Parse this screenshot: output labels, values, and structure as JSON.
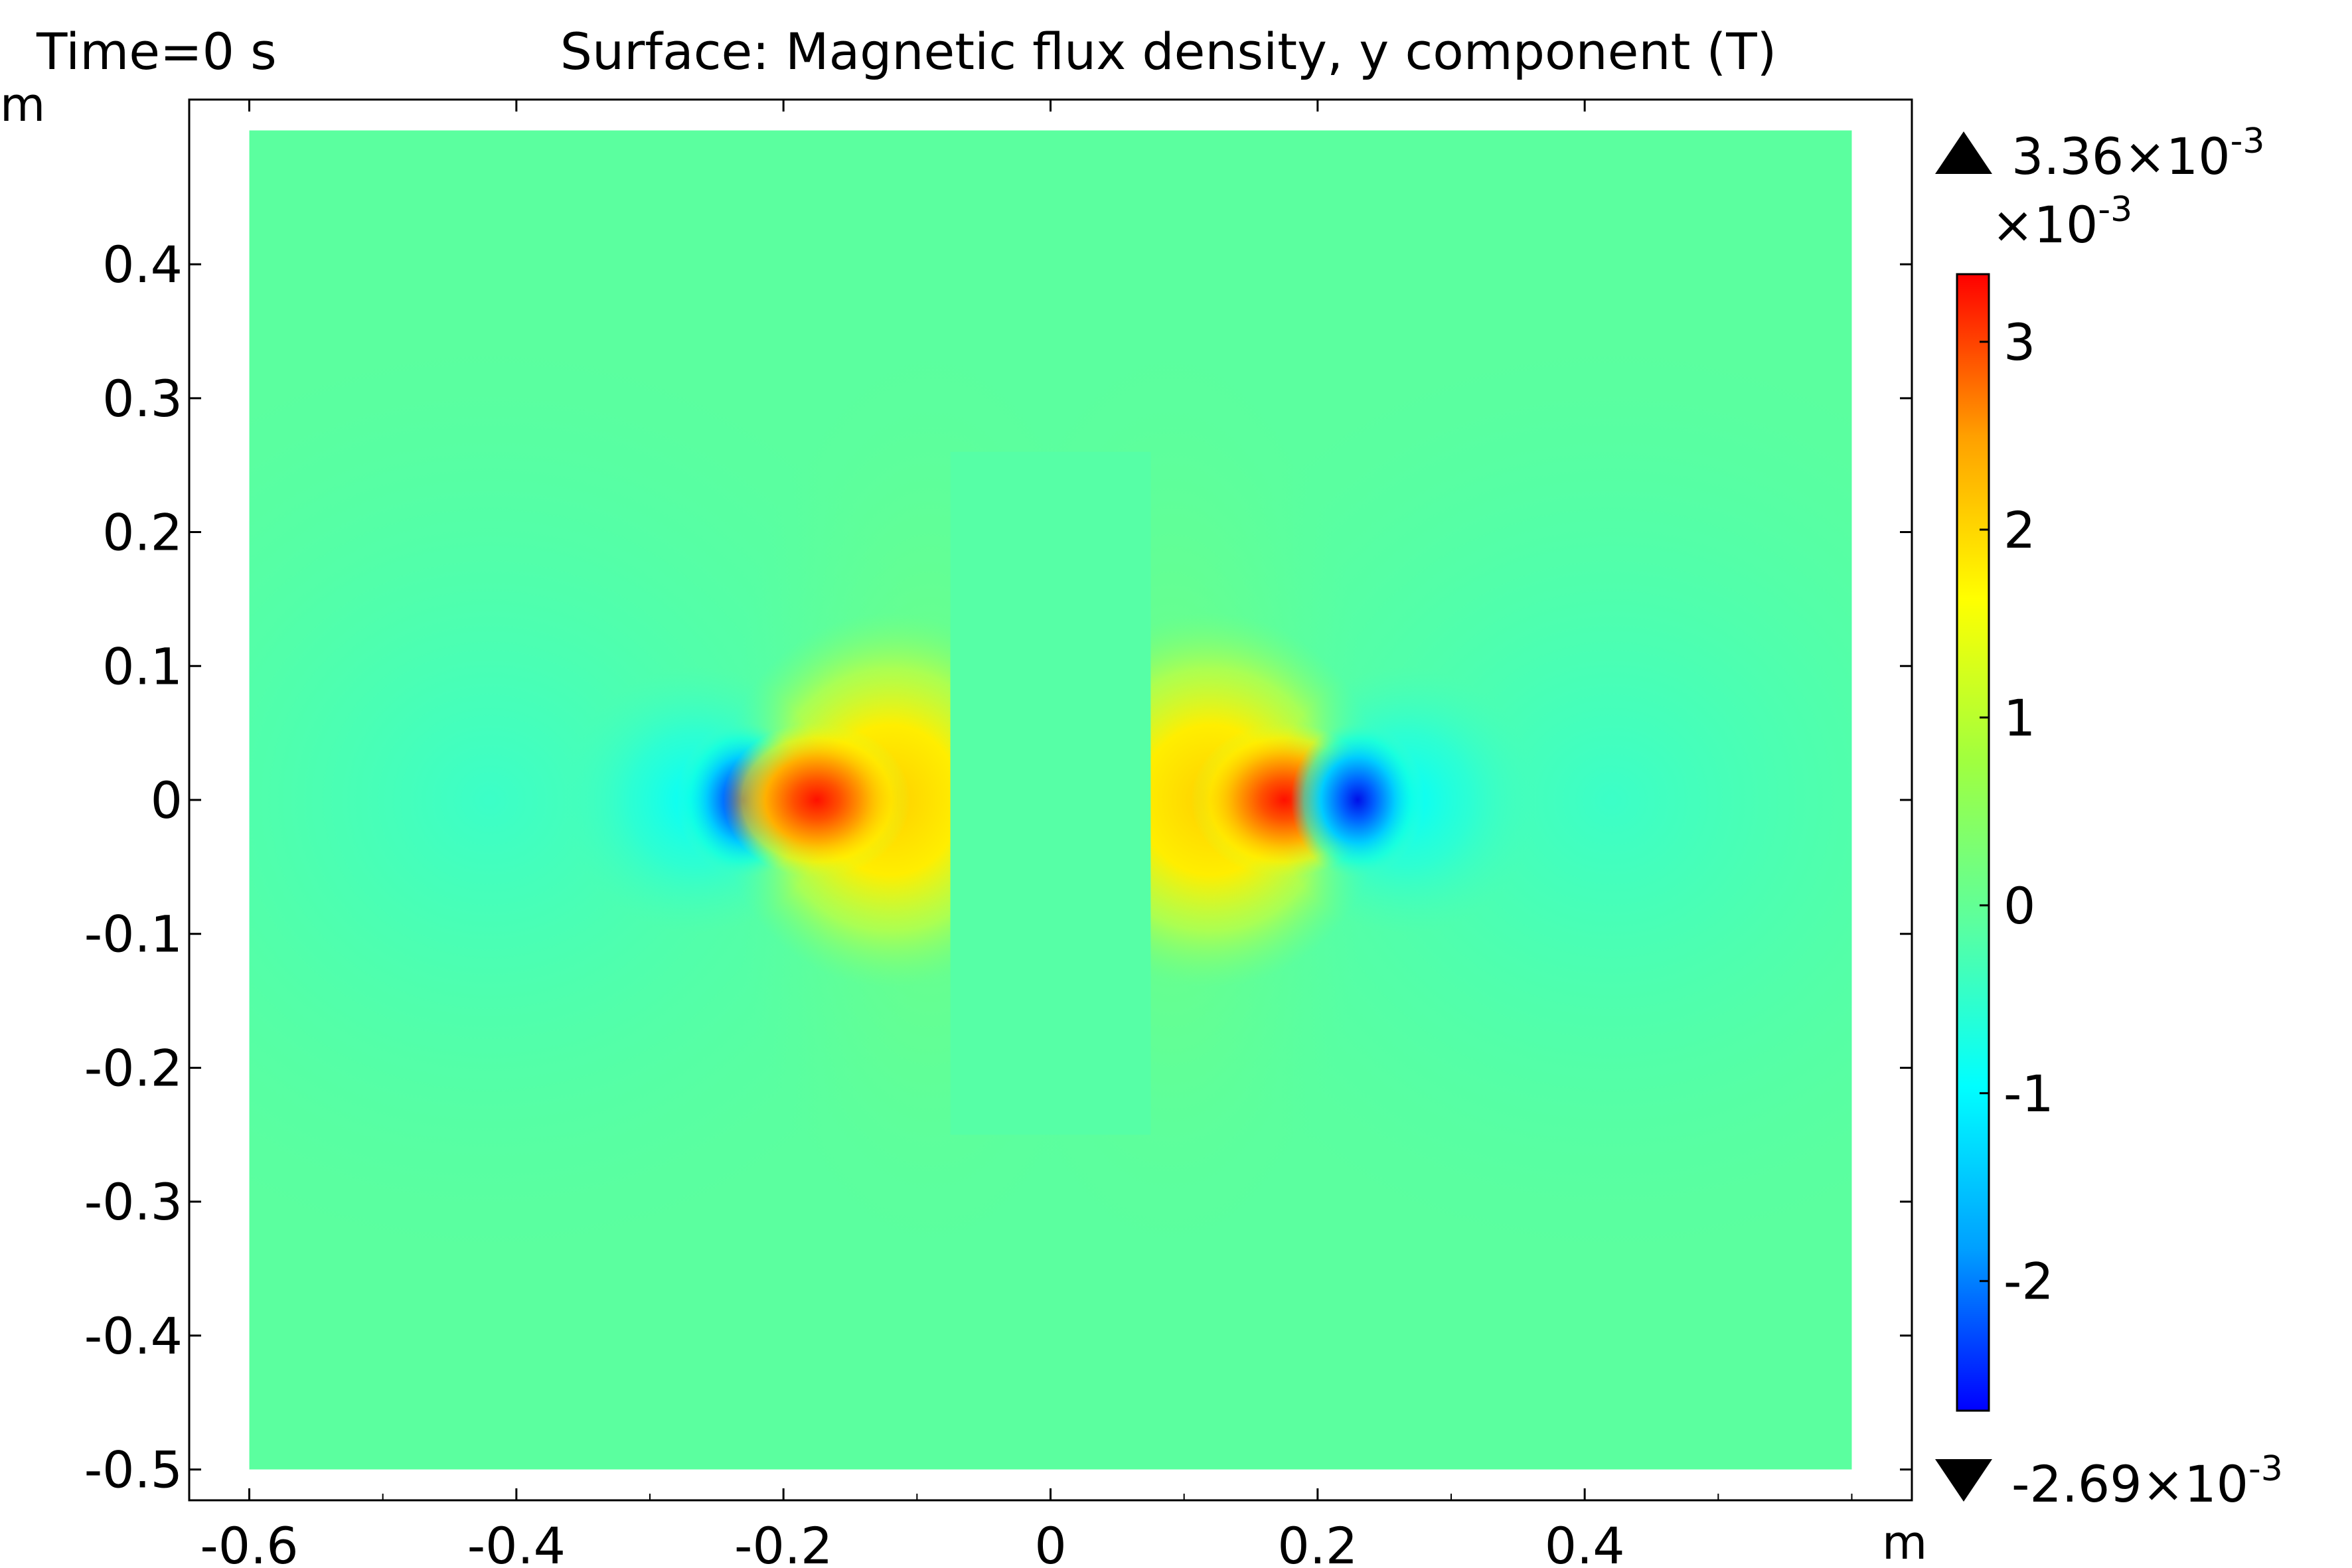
{
  "chart_data": {
    "type": "heatmap",
    "time_label": "Time=0 s",
    "title": "Surface: Magnetic flux density, y component (T)",
    "xlabel": "m",
    "ylabel": "m",
    "xlim": [
      -0.645,
      0.645
    ],
    "ylim": [
      -0.523,
      0.523
    ],
    "domain": {
      "x": [
        -0.6,
        0.6
      ],
      "y": [
        -0.5,
        0.5
      ]
    },
    "x_ticks": [
      {
        "value": -0.6,
        "label": "-0.6"
      },
      {
        "value": -0.4,
        "label": "-0.4"
      },
      {
        "value": -0.2,
        "label": "-0.2"
      },
      {
        "value": 0,
        "label": "0"
      },
      {
        "value": 0.2,
        "label": "0.2"
      },
      {
        "value": 0.4,
        "label": "0.4"
      }
    ],
    "y_ticks": [
      {
        "value": 0.4,
        "label": "0.4"
      },
      {
        "value": 0.3,
        "label": "0.3"
      },
      {
        "value": 0.2,
        "label": "0.2"
      },
      {
        "value": 0.1,
        "label": "0.1"
      },
      {
        "value": 0,
        "label": "0"
      },
      {
        "value": -0.1,
        "label": "-0.1"
      },
      {
        "value": -0.2,
        "label": "-0.2"
      },
      {
        "value": -0.3,
        "label": "-0.3"
      },
      {
        "value": -0.4,
        "label": "-0.4"
      },
      {
        "value": -0.5,
        "label": "-0.5"
      }
    ],
    "uniform_region": {
      "x": [
        -0.075,
        0.075
      ],
      "y": [
        -0.25,
        0.26
      ]
    },
    "hotspots": [
      {
        "x": -0.23,
        "y": 0,
        "sign": "negative"
      },
      {
        "x": -0.175,
        "y": 0,
        "sign": "positive"
      },
      {
        "x": 0.175,
        "y": 0,
        "sign": "positive"
      },
      {
        "x": 0.23,
        "y": 0,
        "sign": "negative"
      }
    ],
    "colorbar": {
      "max_value": 0.00336,
      "min_value": -0.00269,
      "max_label": "3.36×10",
      "max_exponent": "-3",
      "min_label": "-2.69×10",
      "min_exponent": "-3",
      "scale_label": "×10",
      "scale_exponent": "-3",
      "range": [
        -2.69,
        3.36
      ],
      "ticks": [
        {
          "value": 3,
          "label": "3"
        },
        {
          "value": 2,
          "label": "2"
        },
        {
          "value": 1,
          "label": "1"
        },
        {
          "value": 0,
          "label": "0"
        },
        {
          "value": -1,
          "label": "-1"
        },
        {
          "value": -2,
          "label": "-2"
        }
      ],
      "colormap": [
        "#0000ff",
        "#00a0ff",
        "#00ffff",
        "#5bff9f",
        "#a0ff3f",
        "#ffff00",
        "#ffa000",
        "#ff0000"
      ],
      "background_color": "#5bff9f"
    }
  }
}
